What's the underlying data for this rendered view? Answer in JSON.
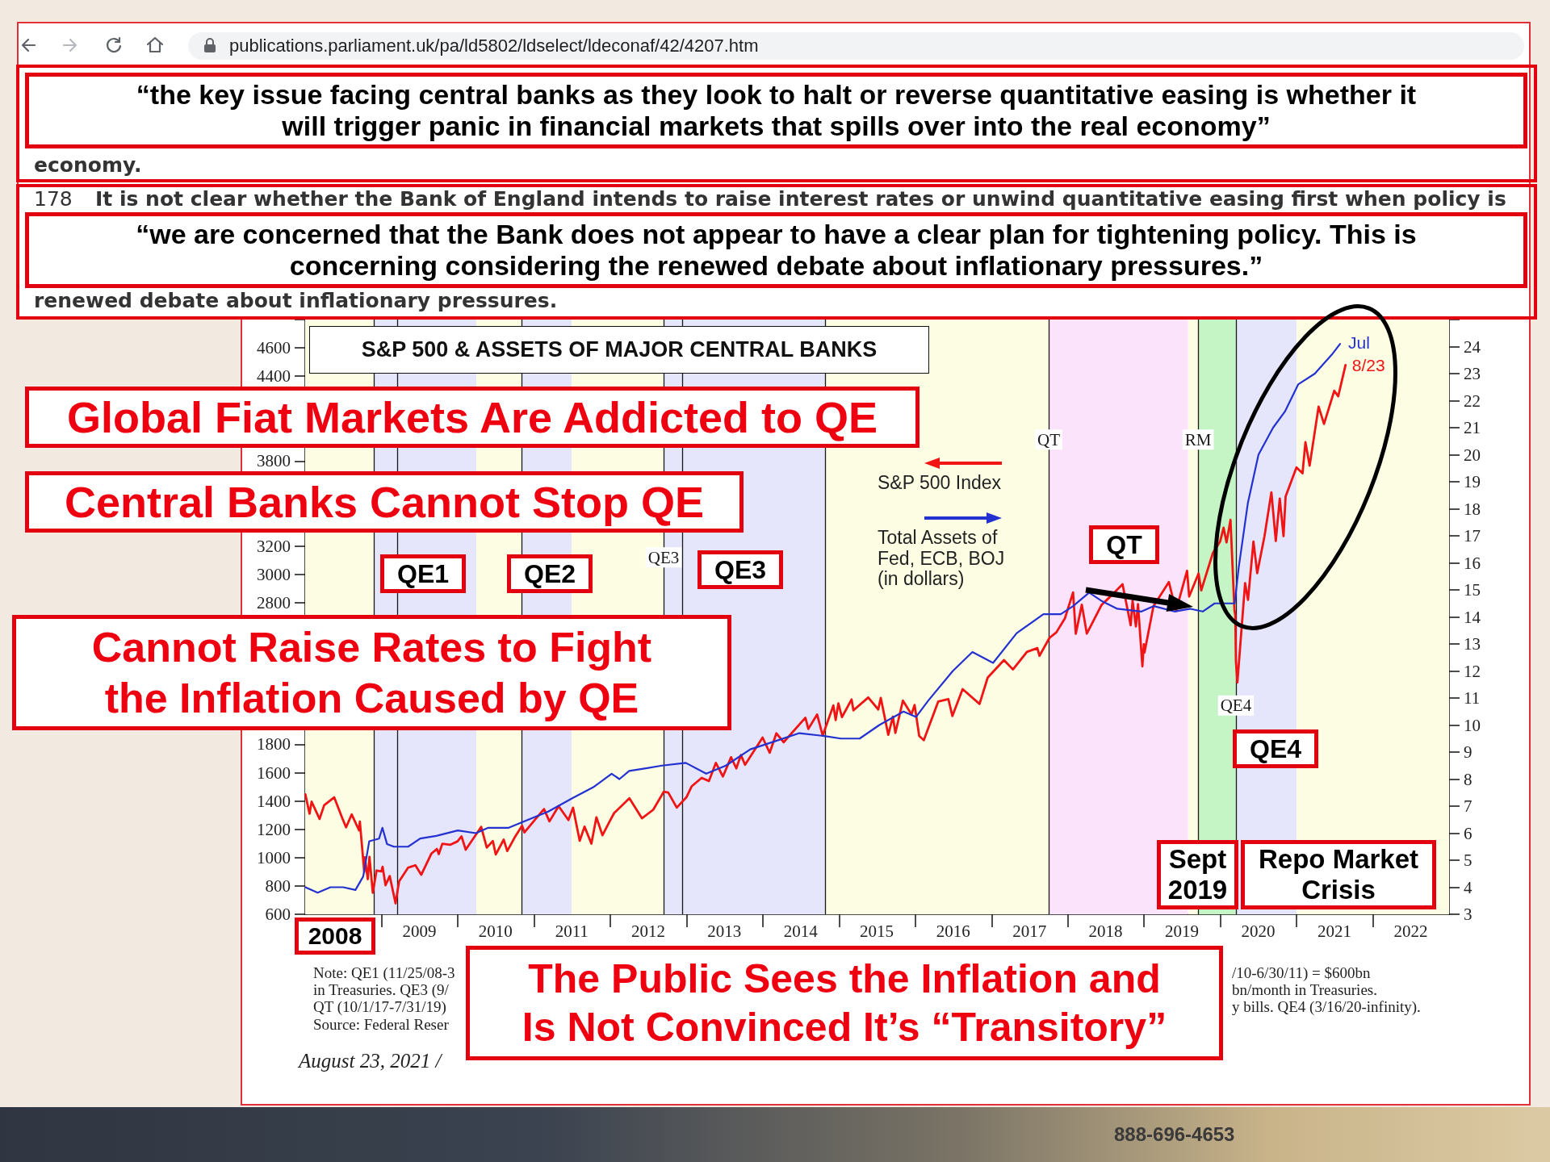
{
  "chart_data": {
    "type": "line",
    "title": "S&P 500 & ASSETS OF MAJOR CENTRAL BANKS",
    "series": [
      {
        "name": "S&P 500 Index",
        "color": "#f01414",
        "x": [
          "2008-01-02",
          "2008-01-22",
          "2008-02-01",
          "2008-03-10",
          "2008-04-01",
          "2008-05-19",
          "2008-06-27",
          "2008-07-15",
          "2008-08-11",
          "2008-09-15",
          "2008-09-19",
          "2008-10-10",
          "2008-10-13",
          "2008-10-27",
          "2008-11-04",
          "2008-11-20",
          "2008-12-08",
          "2008-12-31",
          "2009-01-06",
          "2009-01-20",
          "2009-02-09",
          "2009-03-09",
          "2009-03-26",
          "2009-05-08",
          "2009-06-12",
          "2009-07-10",
          "2009-08-28",
          "2009-09-23",
          "2009-10-02",
          "2009-10-19",
          "2009-11-27",
          "2009-12-31",
          "2010-01-19",
          "2010-02-08",
          "2010-04-23",
          "2010-05-20",
          "2010-06-18",
          "2010-07-02",
          "2010-08-09",
          "2010-08-26",
          "2010-09-30",
          "2010-11-05",
          "2010-11-16",
          "2010-12-31",
          "2011-02-18",
          "2011-03-16",
          "2011-04-29",
          "2011-06-15",
          "2011-07-07",
          "2011-08-08",
          "2011-08-31",
          "2011-10-03",
          "2011-10-27",
          "2011-11-25",
          "2011-12-30",
          "2012-01-20",
          "2012-04-02",
          "2012-06-01",
          "2012-07-25",
          "2012-09-14",
          "2012-10-05",
          "2012-11-15",
          "2012-12-31",
          "2013-01-25",
          "2013-03-14",
          "2013-04-18",
          "2013-05-21",
          "2013-06-24",
          "2013-08-02",
          "2013-08-27",
          "2013-09-18",
          "2013-10-08",
          "2013-12-31",
          "2014-02-03",
          "2014-03-07",
          "2014-04-11",
          "2014-07-24",
          "2014-08-07",
          "2014-09-18",
          "2014-10-15",
          "2014-12-05",
          "2014-12-16",
          "2014-12-29",
          "2015-01-15",
          "2015-03-02",
          "2015-03-11",
          "2015-05-21",
          "2015-07-08",
          "2015-07-20",
          "2015-08-25",
          "2015-09-16",
          "2015-09-28",
          "2015-11-03",
          "2015-12-14",
          "2015-12-29",
          "2016-01-20",
          "2016-02-11",
          "2016-04-20",
          "2016-06-08",
          "2016-06-27",
          "2016-08-15",
          "2016-11-04",
          "2016-12-13",
          "2017-03-01",
          "2017-04-13",
          "2017-06-19",
          "2017-08-08",
          "2017-08-18",
          "2017-10-05",
          "2017-11-07",
          "2017-12-18",
          "2018-01-26",
          "2018-02-08",
          "2018-03-09",
          "2018-04-02",
          "2018-06-12",
          "2018-07-25",
          "2018-09-20",
          "2018-10-29",
          "2018-11-07",
          "2018-11-23",
          "2018-12-03",
          "2018-12-24",
          "2018-12-31",
          "2019-01-03",
          "2019-02-15",
          "2019-04-30",
          "2019-06-03",
          "2019-07-26",
          "2019-08-05",
          "2019-09-19",
          "2019-10-02",
          "2019-11-27",
          "2019-12-31",
          "2020-01-17",
          "2020-01-31",
          "2020-02-19",
          "2020-03-09",
          "2020-03-13",
          "2020-03-16",
          "2020-03-23",
          "2020-04-29",
          "2020-05-13",
          "2020-06-08",
          "2020-06-26",
          "2020-07-31",
          "2020-09-02",
          "2020-09-23",
          "2020-10-12",
          "2020-10-30",
          "2020-11-09",
          "2020-12-31",
          "2021-01-29",
          "2021-02-12",
          "2021-03-04",
          "2021-04-16",
          "2021-05-12",
          "2021-06-30",
          "2021-07-19",
          "2021-08-23"
        ],
        "values": [
          1447,
          1310,
          1395,
          1273,
          1370,
          1426,
          1278,
          1214,
          1305,
          1193,
          1255,
          899,
          1003,
          848,
          1005,
          752,
          909,
          903,
          935,
          805,
          870,
          677,
          832,
          929,
          946,
          879,
          1029,
          1061,
          1025,
          1098,
          1091,
          1115,
          1150,
          1056,
          1217,
          1071,
          1117,
          1022,
          1127,
          1047,
          1141,
          1225,
          1178,
          1258,
          1343,
          1256,
          1364,
          1265,
          1353,
          1119,
          1219,
          1099,
          1285,
          1158,
          1258,
          1315,
          1419,
          1278,
          1338,
          1466,
          1460,
          1353,
          1426,
          1503,
          1563,
          1541,
          1669,
          1573,
          1709,
          1630,
          1725,
          1656,
          1848,
          1741,
          1878,
          1815,
          1988,
          1909,
          2011,
          1862,
          2075,
          1972,
          2090,
          1992,
          2117,
          2040,
          2131,
          2046,
          2128,
          1867,
          1995,
          1881,
          2109,
          2012,
          2078,
          1859,
          1829,
          2102,
          2119,
          2000,
          2190,
          2085,
          2271,
          2395,
          2329,
          2453,
          2480,
          2425,
          2552,
          2591,
          2690,
          2873,
          2581,
          2786,
          2582,
          2786,
          2846,
          2931,
          2641,
          2814,
          2633,
          2790,
          2351,
          2507,
          2448,
          2775,
          2946,
          2744,
          3025,
          2844,
          3006,
          2888,
          3153,
          3231,
          3330,
          3226,
          3386,
          2747,
          2711,
          2386,
          2237,
          2939,
          2820,
          3232,
          3009,
          3271,
          3580,
          3237,
          3535,
          3270,
          3550,
          3756,
          3714,
          3934,
          3768,
          4185,
          4063,
          4297,
          4258,
          4479
        ]
      },
      {
        "name": "Total Assets of Fed, ECB, BOJ (in dollars)",
        "color": "#2231d0",
        "axis": "y2",
        "x": [
          "2008-01-02",
          "2008-03-01",
          "2008-05-01",
          "2008-07-01",
          "2008-08-29",
          "2008-10-05",
          "2008-11-03",
          "2008-12-20",
          "2009-01-05",
          "2009-01-27",
          "2009-03-01",
          "2009-05-08",
          "2009-07-05",
          "2009-09-20",
          "2010-01-01",
          "2010-03-29",
          "2010-05-27",
          "2010-09-02",
          "2010-12-05",
          "2011-03-10",
          "2011-07-05",
          "2011-10-12",
          "2012-01-08",
          "2012-02-14",
          "2012-04-01",
          "2012-06-20",
          "2012-09-05",
          "2012-12-28",
          "2013-04-05",
          "2013-07-08",
          "2013-11-02",
          "2014-02-28",
          "2014-06-25",
          "2014-10-16",
          "2015-01-10",
          "2015-04-10",
          "2015-07-13",
          "2015-11-06",
          "2016-01-05",
          "2016-03-03",
          "2016-06-29",
          "2016-10-01",
          "2017-01-08",
          "2017-05-01",
          "2017-09-06",
          "2017-11-28",
          "2018-01-26",
          "2018-04-13",
          "2018-06-10",
          "2018-08-26",
          "2018-12-20",
          "2019-02-17",
          "2019-05-27",
          "2019-08-11",
          "2019-10-09",
          "2019-12-05",
          "2020-03-10",
          "2020-03-29",
          "2020-05-12",
          "2020-07-02",
          "2020-09-10",
          "2020-11-06",
          "2021-01-08",
          "2021-03-29",
          "2021-06-18",
          "2021-07-28"
        ],
        "values": [
          4.0,
          3.8,
          4.0,
          4.0,
          3.9,
          4.4,
          5.7,
          5.8,
          6.2,
          5.6,
          5.5,
          5.5,
          5.8,
          5.9,
          6.1,
          6.0,
          6.2,
          6.2,
          6.5,
          6.8,
          7.3,
          7.7,
          8.2,
          8.0,
          8.3,
          8.4,
          8.5,
          8.6,
          8.2,
          8.5,
          9.1,
          9.4,
          9.7,
          9.6,
          9.5,
          9.5,
          10.0,
          10.5,
          10.3,
          10.9,
          12.0,
          12.7,
          12.3,
          13.4,
          14.1,
          14.1,
          14.4,
          14.9,
          14.6,
          14.3,
          14.2,
          14.4,
          14.2,
          14.3,
          14.2,
          14.5,
          14.5,
          15.8,
          18.2,
          20.0,
          21.0,
          21.6,
          22.6,
          23.0,
          23.7,
          24.1
        ]
      }
    ],
    "xlim": [
      "2008-01-01",
      "2023-01-01"
    ],
    "xticks": [
      {
        "value": "2009-01-01",
        "label": null
      },
      {
        "value": "2009-07-01",
        "label": "2009"
      },
      {
        "value": "2010-01-01",
        "label": null
      },
      {
        "value": "2010-07-01",
        "label": "2010"
      },
      {
        "value": "2011-01-01",
        "label": null
      },
      {
        "value": "2011-07-01",
        "label": "2011"
      },
      {
        "value": "2012-01-01",
        "label": null
      },
      {
        "value": "2012-07-01",
        "label": "2012"
      },
      {
        "value": "2013-01-01",
        "label": null
      },
      {
        "value": "2013-07-01",
        "label": "2013"
      },
      {
        "value": "2014-01-01",
        "label": null
      },
      {
        "value": "2014-07-01",
        "label": "2014"
      },
      {
        "value": "2015-01-01",
        "label": null
      },
      {
        "value": "2015-07-01",
        "label": "2015"
      },
      {
        "value": "2016-01-01",
        "label": null
      },
      {
        "value": "2016-07-01",
        "label": "2016"
      },
      {
        "value": "2017-01-01",
        "label": null
      },
      {
        "value": "2017-07-01",
        "label": "2017"
      },
      {
        "value": "2018-01-01",
        "label": null
      },
      {
        "value": "2018-07-01",
        "label": "2018"
      },
      {
        "value": "2019-01-01",
        "label": null
      },
      {
        "value": "2019-07-01",
        "label": "2019"
      },
      {
        "value": "2020-01-01",
        "label": null
      },
      {
        "value": "2020-07-01",
        "label": "2020"
      },
      {
        "value": "2021-01-01",
        "label": null
      },
      {
        "value": "2021-07-01",
        "label": "2021"
      },
      {
        "value": "2022-01-01",
        "label": null
      },
      {
        "value": "2022-07-01",
        "label": "2022"
      }
    ],
    "ylim": [
      600,
      4800
    ],
    "yticks": [
      600,
      800,
      1000,
      1200,
      1400,
      1600,
      1800,
      {
        "value": 2000,
        "label": null
      },
      {
        "value": 2200,
        "label": null
      },
      {
        "value": 2400,
        "label": null
      },
      {
        "value": 2600,
        "label": null
      },
      2800,
      3000,
      3200,
      {
        "value": 3400,
        "label": null
      },
      {
        "value": 3600,
        "label": null
      },
      3800,
      {
        "value": 4000,
        "label": null
      },
      {
        "value": 4200,
        "label": null
      },
      4400,
      4600,
      {
        "value": 4800,
        "label": null
      }
    ],
    "y2lim": [
      3,
      25
    ],
    "y2ticks": [
      3,
      4,
      5,
      6,
      7,
      8,
      9,
      10,
      11,
      12,
      13,
      14,
      15,
      16,
      17,
      18,
      19,
      20,
      21,
      22,
      23,
      24,
      {
        "value": 25,
        "label": null
      }
    ],
    "legend": "top",
    "bands": [
      {
        "axis": "x",
        "from": "2008-01-01",
        "to": "2008-11-25",
        "color": "#fdfde3"
      },
      {
        "axis": "x",
        "from": "2008-11-25",
        "to": "2010-03-31",
        "color": "#e5e5fb"
      },
      {
        "axis": "x",
        "from": "2010-03-31",
        "to": "2010-11-03",
        "color": "#fdfde3"
      },
      {
        "axis": "x",
        "from": "2010-11-03",
        "to": "2011-06-30",
        "color": "#e5e5fb"
      },
      {
        "axis": "x",
        "from": "2011-06-30",
        "to": "2012-09-13",
        "color": "#fdfde3"
      },
      {
        "axis": "x",
        "from": "2012-09-13",
        "to": "2014-10-29",
        "color": "#e5e5fb"
      },
      {
        "axis": "x",
        "from": "2014-10-29",
        "to": "2017-10-01",
        "color": "#fdfde3"
      },
      {
        "axis": "x",
        "from": "2017-10-01",
        "to": "2019-07-31",
        "color": "#fbe3fb"
      },
      {
        "axis": "x",
        "from": "2019-07-31",
        "to": "2019-09-17",
        "color": "#fdfde3"
      },
      {
        "axis": "x",
        "from": "2019-09-17",
        "to": "2020-03-16",
        "color": "#c5f5c5"
      },
      {
        "axis": "x",
        "from": "2020-03-16",
        "to": "2021-01-01",
        "color": "#e5e5fb"
      },
      {
        "axis": "x",
        "from": "2021-01-01",
        "to": "2023-01-01",
        "color": "#fdfde3"
      }
    ],
    "ref_lines": [
      {
        "axis": "x",
        "value": "2008-11-25"
      },
      {
        "axis": "x",
        "value": "2009-03-18"
      },
      {
        "axis": "x",
        "value": "2010-11-03"
      },
      {
        "axis": "x",
        "value": "2012-09-13",
        "label": "QE3"
      },
      {
        "axis": "x",
        "value": "2012-12-12"
      },
      {
        "axis": "x",
        "value": "2014-10-29"
      },
      {
        "axis": "x",
        "value": "2017-10-01",
        "label": "QT"
      },
      {
        "axis": "x",
        "value": "2019-09-17",
        "label": "RM"
      },
      {
        "axis": "x",
        "value": "2020-03-16",
        "label": "QE4"
      }
    ],
    "annotations": [
      "publications.parliament.uk/pa/ld5802/ldselect/ldeconaf/42/4207.htm",
      "“the key issue facing central banks as they look to halt or reverse quantitative easing is whether it will trigger panic in financial markets that spills over into the real economy”",
      "economy.",
      "178",
      "It is not clear whether the Bank of England intends to raise interest rates or unwind quantitative easing first when policy is",
      "“we are concerned that the Bank does not appear to have a clear plan for tightening policy. This is concerning considering the renewed debate about inflationary pressures.”",
      "renewed debate about inflationary pressures.",
      "Global Fiat Markets Are Addicted to QE",
      "Central Banks Cannot Stop QE",
      "QE1",
      "QE2",
      "QE3",
      "Cannot Raise Rates to Fight the Inflation Caused by QE",
      "QT",
      "QE4",
      "Sept 2019",
      "Repo Market Crisis",
      "2008",
      "The Public Sees the Inflation and Is Not Convinced It’s “Transitory”",
      "Note: QE1 (11/25/08-3",
      "/10-6/30/11) = $600bn",
      "in Treasuries. QE3 (9/",
      "bn/month in Treasuries.",
      "QT (10/1/17-7/31/19)",
      "y bills. QE4 (3/16/20-infinity).",
      "Source: Federal Reser",
      "August 23, 2021 /",
      "888-696-4653",
      {
        "text": "Jul",
        "x": "2021-07-28",
        "y": 4640
      },
      {
        "text": "8/23",
        "x": "2021-08-23",
        "y": 4480
      }
    ]
  }
}
